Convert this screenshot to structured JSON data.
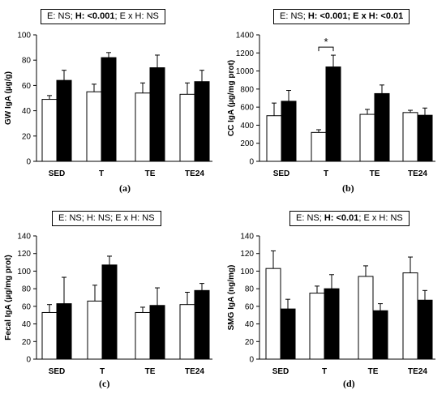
{
  "chart_data": [
    {
      "type": "bar",
      "panel_label": "(a)",
      "ylabel": "GW IgA (µg/g)",
      "xlabel": "",
      "ylim": [
        0,
        100
      ],
      "yticks": [
        0,
        20,
        40,
        60,
        80,
        100
      ],
      "categories": [
        "SED",
        "T",
        "TE",
        "TE24"
      ],
      "series": [
        {
          "fill": "#ffffff",
          "values": [
            49,
            55,
            54,
            53
          ],
          "errors": [
            3,
            6,
            8,
            9
          ]
        },
        {
          "fill": "#000000",
          "values": [
            64,
            82,
            74,
            63
          ],
          "errors": [
            8,
            4,
            10,
            9
          ]
        }
      ],
      "stats": {
        "parts": [
          "E: NS; ",
          "H: <0.001",
          "; E x H: NS"
        ],
        "bold": [
          false,
          true,
          false
        ]
      },
      "significance": null
    },
    {
      "type": "bar",
      "panel_label": "(b)",
      "ylabel": "CC IgA (µg/mg prot)",
      "xlabel": "",
      "ylim": [
        0,
        1400
      ],
      "yticks": [
        0,
        200,
        400,
        600,
        800,
        1000,
        1200,
        1400
      ],
      "categories": [
        "SED",
        "T",
        "TE",
        "TE24"
      ],
      "series": [
        {
          "fill": "#ffffff",
          "values": [
            505,
            320,
            520,
            540
          ],
          "errors": [
            140,
            30,
            55,
            25
          ]
        },
        {
          "fill": "#000000",
          "values": [
            665,
            1045,
            750,
            510
          ],
          "errors": [
            120,
            130,
            95,
            80
          ]
        }
      ],
      "stats": {
        "parts": [
          "E: NS; ",
          "H: <0.001; E x H: <0.01"
        ],
        "bold": [
          false,
          true
        ]
      },
      "significance": {
        "symbol": "*",
        "category_index": 1
      }
    },
    {
      "type": "bar",
      "panel_label": "(c)",
      "ylabel": "Fecal IgA (µg/mg prot)",
      "xlabel": "",
      "ylim": [
        0,
        140
      ],
      "yticks": [
        0,
        20,
        40,
        60,
        80,
        100,
        120,
        140
      ],
      "categories": [
        "SED",
        "T",
        "TE",
        "TE24"
      ],
      "series": [
        {
          "fill": "#ffffff",
          "values": [
            53,
            66,
            53,
            62
          ],
          "errors": [
            9,
            18,
            6,
            14
          ]
        },
        {
          "fill": "#000000",
          "values": [
            63,
            107,
            61,
            78
          ],
          "errors": [
            30,
            10,
            20,
            8
          ]
        }
      ],
      "stats": {
        "parts": [
          "E: NS; H: NS; E x H: NS"
        ],
        "bold": [
          false
        ]
      },
      "significance": null
    },
    {
      "type": "bar",
      "panel_label": "(d)",
      "ylabel": "SMG IgA (ng/mg)",
      "xlabel": "",
      "ylim": [
        0,
        140
      ],
      "yticks": [
        0,
        20,
        40,
        60,
        80,
        100,
        120,
        140
      ],
      "categories": [
        "SED",
        "T",
        "TE",
        "TE24"
      ],
      "series": [
        {
          "fill": "#ffffff",
          "values": [
            103,
            75,
            94,
            98
          ],
          "errors": [
            20,
            8,
            12,
            18
          ]
        },
        {
          "fill": "#000000",
          "values": [
            57,
            80,
            55,
            67
          ],
          "errors": [
            11,
            16,
            8,
            11
          ]
        }
      ],
      "stats": {
        "parts": [
          "E: NS; ",
          "H: <0.01",
          "; E x H: NS"
        ],
        "bold": [
          false,
          true,
          false
        ]
      },
      "significance": null
    }
  ]
}
